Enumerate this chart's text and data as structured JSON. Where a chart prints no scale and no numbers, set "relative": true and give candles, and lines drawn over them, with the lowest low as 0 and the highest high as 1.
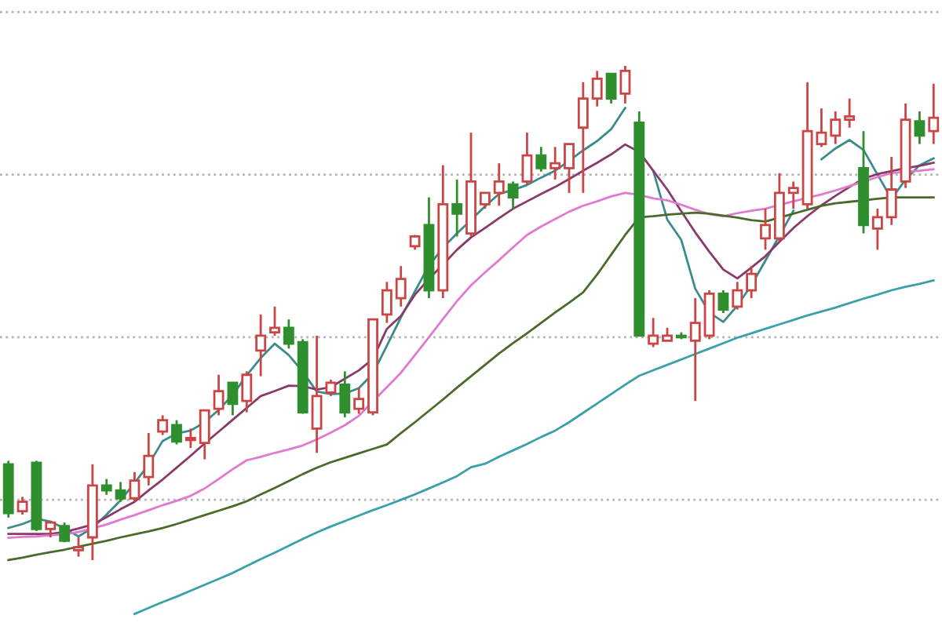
{
  "chart_data": {
    "type": "candlestick",
    "relative": true,
    "categories": [
      null,
      null,
      null,
      null,
      null,
      null,
      null,
      null,
      null,
      null,
      null,
      null,
      null,
      null,
      null,
      null,
      null,
      null,
      null,
      null,
      null,
      null,
      null,
      null,
      null,
      null,
      null,
      null,
      null,
      null,
      null,
      null,
      null,
      null,
      null,
      null,
      null,
      null,
      null,
      null,
      null,
      null,
      null,
      null,
      null,
      null,
      null,
      null,
      null,
      null,
      null,
      null,
      null,
      null,
      null,
      null,
      null,
      null,
      null,
      null,
      null,
      null,
      null,
      null,
      null,
      null,
      null
    ],
    "ohlc": [
      [
        0.194,
        0.201,
        0.086,
        0.095
      ],
      [
        0.099,
        0.128,
        0.092,
        0.118
      ],
      [
        0.197,
        0.201,
        0.059,
        0.063
      ],
      [
        0.063,
        0.079,
        0.046,
        0.076
      ],
      [
        0.069,
        0.076,
        0.036,
        0.039
      ],
      [
        0.02,
        0.046,
        0.007,
        0.026
      ],
      [
        0.046,
        0.194,
        0,
        0.151
      ],
      [
        0.151,
        0.164,
        0.132,
        0.141
      ],
      [
        0.141,
        0.158,
        0.118,
        0.125
      ],
      [
        0.125,
        0.178,
        0.118,
        0.161
      ],
      [
        0.168,
        0.257,
        0.151,
        0.211
      ],
      [
        0.26,
        0.293,
        0.253,
        0.283
      ],
      [
        0.273,
        0.283,
        0.234,
        0.24
      ],
      [
        0.243,
        0.266,
        0.227,
        0.247
      ],
      [
        0.237,
        0.303,
        0.204,
        0.303
      ],
      [
        0.306,
        0.375,
        0.293,
        0.342
      ],
      [
        0.359,
        0.359,
        0.293,
        0.316
      ],
      [
        0.322,
        0.382,
        0.299,
        0.375
      ],
      [
        0.424,
        0.497,
        0.372,
        0.454
      ],
      [
        0.461,
        0.513,
        0.454,
        0.47
      ],
      [
        0.47,
        0.487,
        0.428,
        0.438
      ],
      [
        0.441,
        0.447,
        0.296,
        0.299
      ],
      [
        0.266,
        0.454,
        0.217,
        0.332
      ],
      [
        0.339,
        0.365,
        0.332,
        0.359
      ],
      [
        0.355,
        0.382,
        0.289,
        0.299
      ],
      [
        0.306,
        0.349,
        0.296,
        0.326
      ],
      [
        0.299,
        0.487,
        0.293,
        0.487
      ],
      [
        0.497,
        0.563,
        0.48,
        0.546
      ],
      [
        0.53,
        0.595,
        0.513,
        0.569
      ],
      [
        0.635,
        0.658,
        0.628,
        0.655
      ],
      [
        0.678,
        0.734,
        0.53,
        0.546
      ],
      [
        0.546,
        0.799,
        0.53,
        0.72
      ],
      [
        0.72,
        0.77,
        0.655,
        0.701
      ],
      [
        0.661,
        0.865,
        0.655,
        0.766
      ],
      [
        0.72,
        0.743,
        0.711,
        0.743
      ],
      [
        0.743,
        0.803,
        0.717,
        0.766
      ],
      [
        0.76,
        0.766,
        0.711,
        0.734
      ],
      [
        0.766,
        0.865,
        0.76,
        0.819
      ],
      [
        0.819,
        0.836,
        0.786,
        0.793
      ],
      [
        0.793,
        0.836,
        0.77,
        0.803
      ],
      [
        0.793,
        0.842,
        0.743,
        0.842
      ],
      [
        0.875,
        0.967,
        0.743,
        0.934
      ],
      [
        0.934,
        0.99,
        0.918,
        0.974
      ],
      [
        0.984,
        0.984,
        0.924,
        0.934
      ],
      [
        0.944,
        1.0,
        0.924,
        0.99
      ],
      [
        0.885,
        0.908,
        0.454,
        0.454
      ],
      [
        0.438,
        0.49,
        0.431,
        0.454
      ],
      [
        0.444,
        0.47,
        0.444,
        0.454
      ],
      [
        0.454,
        0.461,
        0.447,
        0.451
      ],
      [
        0.444,
        0.53,
        0.322,
        0.48
      ],
      [
        0.454,
        0.546,
        0.447,
        0.539
      ],
      [
        0.539,
        0.546,
        0.5,
        0.507
      ],
      [
        0.513,
        0.563,
        0.507,
        0.546
      ],
      [
        0.546,
        0.595,
        0.53,
        0.579
      ],
      [
        0.651,
        0.711,
        0.628,
        0.678
      ],
      [
        0.651,
        0.783,
        0.645,
        0.743
      ],
      [
        0.743,
        0.766,
        0.711,
        0.753
      ],
      [
        0.72,
        0.967,
        0.711,
        0.868
      ],
      [
        0.842,
        0.914,
        0.836,
        0.865
      ],
      [
        0.859,
        0.908,
        0.842,
        0.891
      ],
      [
        0.891,
        0.934,
        0.875,
        0.898
      ],
      [
        0.793,
        0.868,
        0.661,
        0.678
      ],
      [
        0.671,
        0.711,
        0.628,
        0.694
      ],
      [
        0.694,
        0.816,
        0.678,
        0.75
      ],
      [
        0.766,
        0.924,
        0.753,
        0.891
      ],
      [
        0.888,
        0.908,
        0.842,
        0.859
      ],
      [
        0.868,
        0.964,
        0.842,
        0.895
      ]
    ],
    "colors": [
      "#2f8f2f",
      "#cc4444",
      "#2f8f2f",
      "#cc4444",
      "#2f8f2f",
      "#cc4444",
      "#cc4444",
      "#2f8f2f",
      "#2f8f2f",
      "#cc4444",
      "#cc4444",
      "#cc4444",
      "#2f8f2f",
      "#cc4444",
      "#cc4444",
      "#cc4444",
      "#2f8f2f",
      "#cc4444",
      "#cc4444",
      "#cc4444",
      "#2f8f2f",
      "#2f8f2f",
      "#cc4444",
      "#cc4444",
      "#2f8f2f",
      "#cc4444",
      "#cc4444",
      "#cc4444",
      "#cc4444",
      "#cc4444",
      "#2f8f2f",
      "#cc4444",
      "#2f8f2f",
      "#cc4444",
      "#cc4444",
      "#cc4444",
      "#2f8f2f",
      "#cc4444",
      "#2f8f2f",
      "#cc4444",
      "#cc4444",
      "#cc4444",
      "#cc4444",
      "#2f8f2f",
      "#cc4444",
      "#2f8f2f",
      "#cc4444",
      "#cc4444",
      "#2f8f2f",
      "#cc4444",
      "#cc4444",
      "#2f8f2f",
      "#cc4444",
      "#cc4444",
      "#cc4444",
      "#cc4444",
      "#cc4444",
      "#cc4444",
      "#cc4444",
      "#cc4444",
      "#cc4444",
      "#2f8f2f",
      "#cc4444",
      "#cc4444",
      "#cc4444",
      "#2f8f2f",
      "#cc4444"
    ],
    "series": [
      {
        "type": "line",
        "color": "#3a8c8c",
        "values": [
          0.065,
          0.073,
          0.084,
          0.078,
          0.064,
          0.048,
          0.065,
          0.092,
          0.121,
          0.156,
          0.193,
          0.241,
          0.256,
          0.262,
          0.279,
          0.304,
          0.334,
          0.374,
          0.409,
          0.438,
          0.415,
          0.381,
          0.341,
          0.336,
          0.337,
          0.348,
          0.377,
          0.434,
          0.491,
          0.544,
          0.596,
          0.632,
          0.661,
          0.688,
          0.716,
          0.741,
          0.749,
          0.759,
          0.774,
          0.788,
          0.808,
          0.829,
          0.848,
          0.872,
          0.915,
          null,
          0.788,
          0.689,
          0.648,
          0.549,
          0.501,
          0.482,
          0.515,
          0.556,
          0.606,
          0.656,
          0.707,
          null,
          0.811,
          0.833,
          0.85,
          0.83,
          0.78,
          0.731,
          0.77,
          0.799,
          0.813
        ]
      },
      {
        "type": "line",
        "color": "#8a3a6a",
        "values": [
          0.053,
          0.053,
          0.053,
          0.053,
          0.057,
          0.064,
          0.072,
          0.087,
          0.103,
          0.118,
          0.141,
          0.163,
          0.187,
          0.211,
          0.236,
          0.26,
          0.284,
          0.308,
          0.332,
          0.342,
          0.353,
          0.352,
          0.345,
          0.35,
          0.367,
          0.384,
          0.407,
          0.468,
          0.494,
          0.537,
          0.569,
          0.598,
          0.628,
          0.653,
          0.672,
          0.692,
          0.711,
          0.726,
          0.741,
          0.755,
          0.771,
          0.788,
          0.804,
          0.821,
          0.841,
          0.826,
          0.788,
          0.75,
          0.706,
          0.663,
          0.624,
          0.588,
          0.57,
          0.592,
          0.615,
          0.644,
          0.672,
          0.696,
          0.718,
          0.737,
          0.755,
          0.772,
          0.781,
          0.787,
          0.793,
          0.798,
          0.804
        ]
      },
      {
        "type": "line",
        "color": "#e07ad0",
        "values": [
          0.045,
          0.047,
          0.048,
          0.05,
          0.052,
          0.057,
          0.064,
          0.072,
          0.082,
          0.091,
          0.101,
          0.111,
          0.12,
          0.13,
          0.145,
          0.164,
          0.184,
          0.202,
          0.209,
          0.217,
          0.224,
          0.232,
          0.244,
          0.258,
          0.273,
          0.292,
          0.321,
          0.35,
          0.379,
          0.415,
          0.451,
          0.488,
          0.524,
          0.556,
          0.582,
          0.607,
          0.633,
          0.658,
          0.675,
          0.69,
          0.705,
          0.717,
          0.726,
          0.736,
          0.743,
          0.739,
          0.732,
          0.728,
          0.719,
          0.709,
          0.7,
          0.696,
          0.702,
          0.707,
          0.711,
          0.719,
          0.726,
          0.733,
          0.74,
          0.748,
          0.757,
          0.766,
          0.775,
          0.783,
          0.786,
          0.788,
          0.791
        ]
      },
      {
        "type": "line",
        "color": "#4a6a2a",
        "values": [
          0,
          0.005,
          0.011,
          0.016,
          0.021,
          0.027,
          0.033,
          0.039,
          0.046,
          0.052,
          0.058,
          0.065,
          0.073,
          0.082,
          0.091,
          0.1,
          0.109,
          0.119,
          0.133,
          0.146,
          0.16,
          0.174,
          0.187,
          0.198,
          0.207,
          0.216,
          0.225,
          0.234,
          0.257,
          0.279,
          0.302,
          0.325,
          0.349,
          0.372,
          0.395,
          0.418,
          0.439,
          0.459,
          0.48,
          0.501,
          0.521,
          0.542,
          0.578,
          0.618,
          0.658,
          0.694,
          0.696,
          0.699,
          0.701,
          0.703,
          0.701,
          0.697,
          0.693,
          0.688,
          0.685,
          0.693,
          0.701,
          0.709,
          0.717,
          0.722,
          0.725,
          0.728,
          0.731,
          0.734,
          0.734,
          0.734,
          0.734
        ]
      },
      {
        "type": "line",
        "color": "#3aa0a8",
        "values": [
          null,
          null,
          null,
          null,
          null,
          null,
          null,
          null,
          null,
          -0.109,
          -0.097,
          -0.085,
          -0.074,
          -0.062,
          -0.05,
          -0.038,
          -0.026,
          -0.012,
          0.002,
          0.015,
          0.029,
          0.043,
          0.056,
          0.068,
          0.079,
          0.09,
          0.101,
          0.111,
          0.122,
          0.133,
          0.145,
          0.157,
          0.17,
          0.188,
          0.195,
          0.209,
          0.222,
          0.235,
          0.249,
          0.262,
          0.279,
          0.298,
          0.317,
          0.336,
          0.355,
          0.373,
          0.384,
          0.395,
          0.406,
          0.417,
          0.428,
          0.439,
          0.45,
          0.459,
          0.468,
          0.477,
          0.486,
          0.495,
          0.503,
          0.511,
          0.52,
          0.529,
          0.537,
          0.546,
          0.553,
          0.559,
          0.566
        ]
      }
    ],
    "ref_lines": [
      {
        "axis": "y",
        "value": 1.109,
        "color": "#b4b4b4",
        "line_style": "dotted"
      },
      {
        "axis": "y",
        "value": 0.78,
        "color": "#b4b4b4",
        "line_style": "dotted"
      },
      {
        "axis": "y",
        "value": 0.451,
        "color": "#b4b4b4",
        "line_style": "dotted"
      },
      {
        "axis": "y",
        "value": 0.122,
        "color": "#b4b4b4",
        "line_style": "dotted"
      }
    ]
  }
}
